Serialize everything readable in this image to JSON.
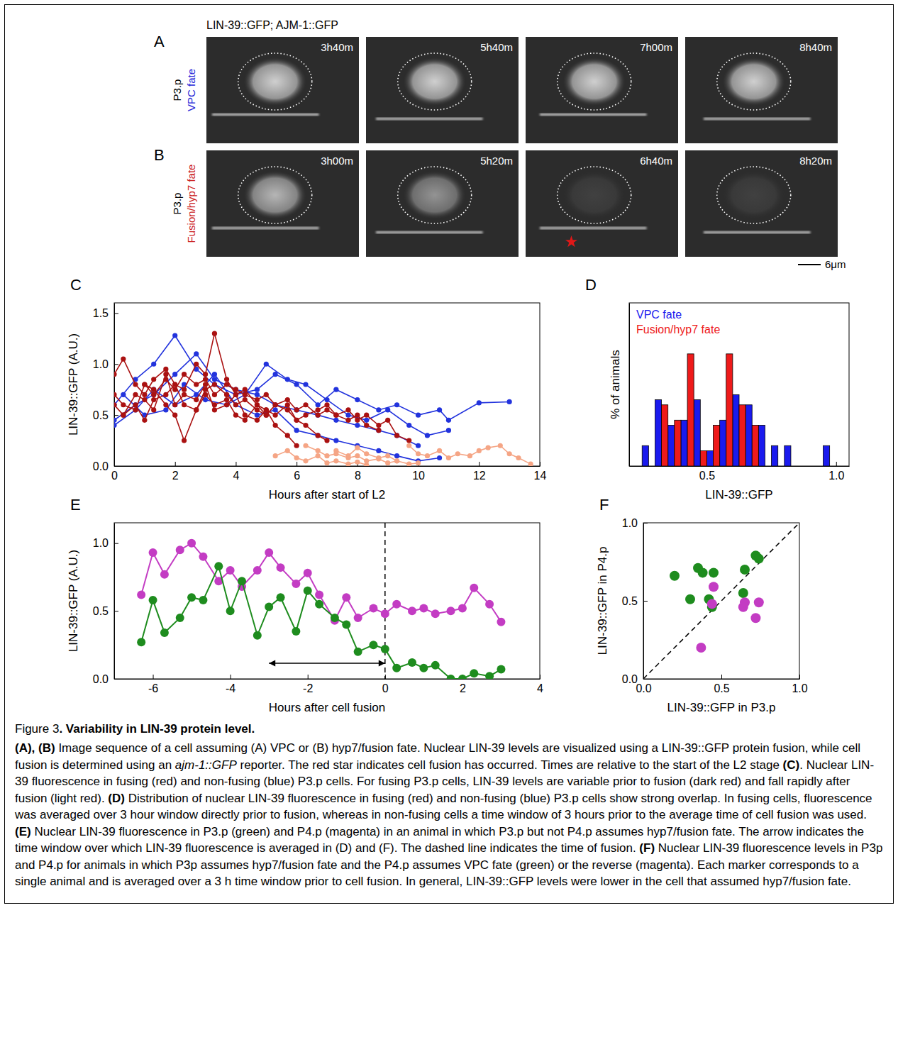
{
  "images": {
    "header": "LIN-39::GFP; AJM-1::GFP",
    "scale_bar": "6μm",
    "rows": [
      {
        "panel": "A",
        "cell": "P3.p",
        "fate": "VPC fate",
        "color": "#2a2ad8",
        "times": [
          "3h40m",
          "5h40m",
          "7h00m",
          "8h40m"
        ]
      },
      {
        "panel": "B",
        "cell": "P3.p",
        "fate": "Fusion/hyp7 fate",
        "color": "#cc2222",
        "times": [
          "3h00m",
          "5h20m",
          "6h40m",
          "8h20m"
        ],
        "fusion_frame": 2
      }
    ]
  },
  "chart_data": [
    {
      "panel": "C",
      "type": "line",
      "marker": "circle",
      "x_label": "Hours after start of L2",
      "y_label": "LIN-39::GFP (A.U.)",
      "xlim": [
        0,
        14
      ],
      "ylim": [
        0,
        1.6
      ],
      "xticks": [
        0,
        2,
        4,
        6,
        8,
        10,
        12,
        14
      ],
      "yticks": [
        {
          "value": 0,
          "label": "0.0"
        },
        0.5,
        {
          "value": 1,
          "label": "1.0"
        },
        1.5
      ],
      "series": [
        {
          "color": "#2233dd",
          "x": [
            0,
            0.7,
            1.3,
            2,
            2.7,
            3.3,
            4,
            4.7,
            5.3,
            6,
            6.7,
            7.3,
            8,
            8.7,
            9.3,
            10,
            10.7,
            11,
            12,
            13
          ],
          "values": [
            0.6,
            0.85,
            1.0,
            1.28,
            0.95,
            0.8,
            0.7,
            0.75,
            0.9,
            0.8,
            0.6,
            0.75,
            0.65,
            0.55,
            0.6,
            0.5,
            0.55,
            0.45,
            0.62,
            0.63
          ]
        },
        {
          "color": "#2233dd",
          "x": [
            0,
            0.7,
            1.3,
            2,
            2.7,
            3.3,
            4,
            4.7,
            5.3,
            6,
            6.7,
            7.3,
            8,
            8.7,
            9.3,
            10
          ],
          "values": [
            0.45,
            0.6,
            0.7,
            0.9,
            1.1,
            0.85,
            0.75,
            0.7,
            0.6,
            0.55,
            0.5,
            0.45,
            0.4,
            0.35,
            0.3,
            0.2
          ]
        },
        {
          "color": "#2233dd",
          "x": [
            0.3,
            1,
            1.7,
            2.3,
            3,
            3.7,
            4.3,
            5,
            5.7,
            6.3,
            7,
            7.7,
            8.3,
            9,
            9.7,
            10.3,
            11
          ],
          "values": [
            0.7,
            0.5,
            0.55,
            0.8,
            0.65,
            0.6,
            0.7,
            1.0,
            0.85,
            0.8,
            0.65,
            0.5,
            0.45,
            0.55,
            0.4,
            0.3,
            0.35
          ]
        },
        {
          "color": "#2233dd",
          "x": [
            0,
            0.7,
            1.3,
            2,
            2.7,
            3.3,
            4,
            4.7,
            5.3,
            6,
            6.7,
            7.3,
            8,
            8.7,
            9.3,
            10,
            10.7
          ],
          "values": [
            0.4,
            0.55,
            0.75,
            0.6,
            0.7,
            0.9,
            0.6,
            0.5,
            0.55,
            0.35,
            0.3,
            0.25,
            0.2,
            0.15,
            0.1,
            0.05,
            0.08
          ]
        },
        {
          "color": "#aa1111",
          "x": [
            0,
            0.3,
            0.7,
            1,
            1.3,
            1.7,
            2,
            2.3,
            2.7,
            3,
            3.3,
            3.7,
            4,
            4.3,
            4.7,
            5
          ],
          "values": [
            0.9,
            1.05,
            0.8,
            0.7,
            0.85,
            0.95,
            0.8,
            0.75,
            1.0,
            0.9,
            1.3,
            0.85,
            0.7,
            0.75,
            0.6,
            0.5
          ]
        },
        {
          "color": "#aa1111",
          "x": [
            0,
            0.3,
            0.7,
            1,
            1.3,
            1.7,
            2,
            2.3,
            2.7,
            3,
            3.3,
            3.7,
            4,
            4.3,
            4.7,
            5,
            5.3,
            5.7,
            6
          ],
          "values": [
            0.6,
            0.5,
            0.7,
            0.65,
            0.55,
            0.9,
            0.6,
            0.7,
            0.65,
            0.8,
            0.55,
            0.6,
            0.7,
            0.5,
            0.45,
            0.55,
            0.4,
            0.3,
            0.2
          ]
        },
        {
          "color": "#aa1111",
          "x": [
            0,
            0.3,
            0.7,
            1,
            1.3,
            1.7,
            2,
            2.3,
            2.7,
            3,
            3.3,
            3.7,
            4,
            4.3,
            4.7,
            5,
            5.3,
            5.7,
            6,
            6.3,
            6.7,
            7
          ],
          "values": [
            0.7,
            0.6,
            0.55,
            0.8,
            0.75,
            0.6,
            0.5,
            0.25,
            0.55,
            0.7,
            0.6,
            0.65,
            0.5,
            0.45,
            0.6,
            0.55,
            0.5,
            0.6,
            0.45,
            0.4,
            0.3,
            0.25
          ]
        },
        {
          "color": "#aa1111",
          "x": [
            1,
            1.3,
            1.7,
            2,
            2.3,
            2.7,
            3,
            3.3,
            3.7,
            4,
            4.3,
            4.7,
            5,
            5.3,
            5.7,
            6,
            6.3,
            6.7,
            7,
            7.3,
            7.7,
            8,
            8.3,
            8.7
          ],
          "values": [
            0.8,
            0.7,
            0.85,
            0.75,
            0.9,
            0.8,
            0.85,
            0.7,
            0.8,
            0.75,
            0.7,
            0.65,
            0.7,
            0.6,
            0.65,
            0.55,
            0.6,
            0.5,
            0.55,
            0.5,
            0.45,
            0.5,
            0.4,
            0.35
          ]
        },
        {
          "color": "#aa1111",
          "x": [
            0.3,
            0.7,
            1,
            1.3,
            1.7,
            2,
            2.3,
            2.7,
            3,
            3.3,
            3.7,
            4,
            4.3,
            4.7,
            5,
            5.3,
            5.7,
            6,
            6.3,
            6.7,
            7,
            7.3,
            7.7,
            8,
            8.3,
            8.7,
            9,
            9.3,
            9.7
          ],
          "values": [
            0.5,
            0.6,
            0.45,
            0.65,
            0.7,
            0.8,
            0.6,
            0.55,
            0.75,
            0.8,
            0.7,
            0.6,
            0.65,
            0.55,
            0.5,
            0.6,
            0.55,
            0.45,
            0.5,
            0.55,
            0.6,
            0.5,
            0.55,
            0.45,
            0.5,
            0.4,
            0.45,
            0.3,
            0.25
          ]
        },
        {
          "color": "#f5a585",
          "x": [
            5.3,
            5.7,
            6,
            6.3,
            6.7,
            7,
            7.3,
            7.7,
            8,
            8.3
          ],
          "values": [
            0.1,
            0.15,
            0.08,
            0.05,
            0.1,
            0.03,
            0.05,
            0.02,
            0.04,
            0.01
          ]
        },
        {
          "color": "#f5a585",
          "x": [
            6.3,
            6.7,
            7,
            7.3,
            7.7,
            8,
            8.3,
            8.7,
            9,
            9.3,
            9.7,
            10
          ],
          "values": [
            0.2,
            0.15,
            0.1,
            0.12,
            0.08,
            0.1,
            0.05,
            0.07,
            0.03,
            0.05,
            0.02,
            0.03
          ]
        },
        {
          "color": "#f5a585",
          "x": [
            7.3,
            7.7,
            8,
            8.3,
            8.7,
            9,
            9.3
          ],
          "values": [
            0.15,
            0.1,
            0.18,
            0.12,
            0.08,
            0.1,
            0.05
          ]
        },
        {
          "color": "#f5a585",
          "x": [
            9.7,
            10,
            10.3,
            10.7,
            11,
            11.3,
            11.7,
            12,
            12.3,
            12.7,
            13,
            13.3,
            13.7
          ],
          "values": [
            0.2,
            0.12,
            0.1,
            0.15,
            0.08,
            0.12,
            0.1,
            0.15,
            0.18,
            0.2,
            0.12,
            0.08,
            0.02
          ]
        }
      ]
    },
    {
      "panel": "D",
      "type": "histogram",
      "x_label": "LIN-39::GFP",
      "y_label": "% of animals",
      "legend": "upper left",
      "tick_labels": "x",
      "xlim": [
        0.2,
        1.05
      ],
      "ylim": [
        0,
        32
      ],
      "xticks": [
        0.5,
        {
          "value": 1,
          "label": "1.0"
        }
      ],
      "bins": [
        0.25,
        0.3,
        0.35,
        0.4,
        0.45,
        0.5,
        0.55,
        0.6,
        0.65,
        0.7,
        0.75,
        0.8,
        0.85,
        0.9,
        0.95,
        1.0
      ],
      "series": [
        {
          "name": "VPC fate",
          "color": "#1a1aee",
          "values": [
            4,
            13,
            8,
            9,
            13,
            3,
            9,
            14,
            12,
            8,
            4,
            4,
            0,
            0,
            4
          ]
        },
        {
          "name": "Fusion/hyp7 fate",
          "color": "#ee1a1a",
          "values": [
            0,
            12,
            9,
            22,
            3,
            8,
            22,
            12,
            8,
            0,
            0,
            0,
            0,
            0,
            0
          ]
        }
      ]
    },
    {
      "panel": "E",
      "type": "line",
      "marker": "circle",
      "x_label": "Hours after cell fusion",
      "y_label": "LIN-39::GFP (A.U.)",
      "xlim": [
        -7,
        4
      ],
      "ylim": [
        0,
        1.15
      ],
      "xticks": [
        -6,
        -4,
        -2,
        0,
        2,
        4
      ],
      "yticks": [
        {
          "value": 0,
          "label": "0.0"
        },
        0.5,
        {
          "value": 1,
          "label": "1.0"
        }
      ],
      "reference_x": 0,
      "window": [
        -3,
        0
      ],
      "series": [
        {
          "color": "#c33cc3",
          "x": [
            -6.3,
            -6,
            -5.7,
            -5.3,
            -5,
            -4.7,
            -4.3,
            -4,
            -3.7,
            -3.3,
            -3,
            -2.7,
            -2.3,
            -2,
            -1.7,
            -1.3,
            -1,
            -0.7,
            -0.3,
            0,
            0.3,
            0.7,
            1,
            1.3,
            1.7,
            2,
            2.3,
            2.7,
            3
          ],
          "values": [
            0.62,
            0.93,
            0.77,
            0.95,
            1.0,
            0.9,
            0.72,
            0.8,
            0.68,
            0.8,
            0.93,
            0.82,
            0.7,
            0.78,
            0.62,
            0.43,
            0.6,
            0.45,
            0.52,
            0.48,
            0.55,
            0.5,
            0.52,
            0.48,
            0.5,
            0.52,
            0.67,
            0.55,
            0.42
          ]
        },
        {
          "color": "#1e8c1e",
          "x": [
            -6.3,
            -6,
            -5.7,
            -5.3,
            -5,
            -4.7,
            -4.3,
            -4,
            -3.7,
            -3.3,
            -3,
            -2.7,
            -2.3,
            -2,
            -1.7,
            -1.3,
            -1,
            -0.7,
            -0.3,
            0,
            0.3,
            0.7,
            1,
            1.3,
            1.7,
            2,
            2.3,
            2.7,
            3
          ],
          "values": [
            0.27,
            0.58,
            0.34,
            0.45,
            0.6,
            0.58,
            0.83,
            0.5,
            0.72,
            0.32,
            0.53,
            0.6,
            0.35,
            0.65,
            0.55,
            0.45,
            0.4,
            0.2,
            0.25,
            0.22,
            0.08,
            0.12,
            0.08,
            0.1,
            0.0,
            0.0,
            0.04,
            0.02,
            0.07
          ]
        }
      ]
    },
    {
      "panel": "F",
      "type": "scatter",
      "marker": "circle",
      "x_label": "LIN-39::GFP in P3.p",
      "y_label": "LIN-39::GFP in P4.p",
      "xlim": [
        0,
        1
      ],
      "ylim": [
        0,
        1
      ],
      "xticks": [
        {
          "value": 0,
          "label": "0.0"
        },
        0.5,
        {
          "value": 1,
          "label": "1.0"
        }
      ],
      "yticks": [
        {
          "value": 0,
          "label": "0.0"
        },
        0.5,
        {
          "value": 1,
          "label": "1.0"
        }
      ],
      "series": [
        {
          "color": "#1e8c1e",
          "x": [
            0.2,
            0.3,
            0.35,
            0.38,
            0.45,
            0.42,
            0.44,
            0.65,
            0.64,
            0.72,
            0.74
          ],
          "values": [
            0.66,
            0.51,
            0.71,
            0.68,
            0.68,
            0.51,
            0.46,
            0.7,
            0.55,
            0.79,
            0.77
          ]
        },
        {
          "color": "#c33cc3",
          "x": [
            0.37,
            0.45,
            0.44,
            0.64,
            0.65,
            0.74,
            0.72
          ],
          "values": [
            0.2,
            0.59,
            0.48,
            0.46,
            0.49,
            0.49,
            0.39
          ]
        }
      ]
    }
  ],
  "caption": {
    "title": [
      {
        "text": "Figure 3",
        "style": "normal"
      },
      {
        "text": ". Variability in LIN-39 protein level.",
        "style": "bold"
      }
    ],
    "body": [
      {
        "text": "(A), (B)",
        "style": "bold"
      },
      {
        "text": " Image sequence of a cell assuming (A) VPC or (B) hyp7/fusion fate. Nuclear LIN-39 levels are visualized using a LIN-39::GFP protein fusion, while cell fusion is determined using an ",
        "style": "normal"
      },
      {
        "text": "ajm-1::GFP",
        "style": "italic"
      },
      {
        "text": " reporter. The red star indicates cell fusion has occurred. Times are relative to the start of the L2 stage ",
        "style": "normal"
      },
      {
        "text": "(C)",
        "style": "bold"
      },
      {
        "text": ". Nuclear LIN-39 fluorescence in fusing (red) and non-fusing (blue) P3.p cells. For fusing P3.p cells, LIN-39 levels are variable prior to fusion (dark red) and fall rapidly after fusion (light red). ",
        "style": "normal"
      },
      {
        "text": "(D)",
        "style": "bold"
      },
      {
        "text": " Distribution of nuclear LIN-39 fluorescence in fusing (red) and non-fusing (blue) P3.p cells show strong overlap. In fusing cells, fluorescence was averaged over 3 hour window directly prior to fusion, whereas in non-fusing cells a time window of 3 hours prior to the average time of cell fusion was used. ",
        "style": "normal"
      },
      {
        "text": "(E)",
        "style": "bold"
      },
      {
        "text": " Nuclear LIN-39 fluorescence in P3.p (green) and P4.p (magenta) in an animal in which P3.p but not P4.p assumes hyp7/fusion fate. The arrow indicates the time window over which LIN-39 fluorescence is averaged in (D) and (F). The dashed line indicates the time of fusion. ",
        "style": "normal"
      },
      {
        "text": "(F)",
        "style": "bold"
      },
      {
        "text": " Nuclear LIN-39 fluorescence levels in P3p and P4.p for animals in which P3p assumes hyp7/fusion fate and the P4.p assumes VPC fate (green) or the reverse (magenta). Each marker corresponds to a single animal and is averaged over a 3 h time window prior to cell fusion. In general, LIN-39::GFP levels were lower in the cell that assumed hyp7/fusion fate.",
        "style": "normal"
      }
    ]
  }
}
